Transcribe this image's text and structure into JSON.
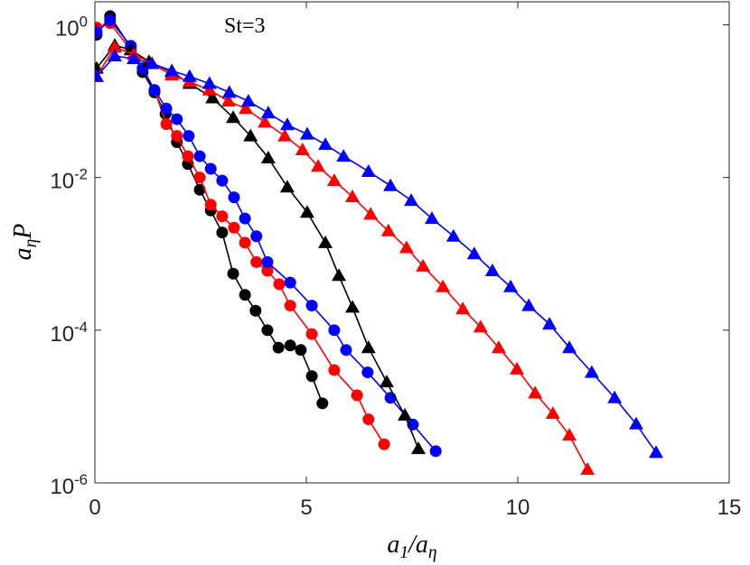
{
  "chart_data": {
    "type": "line",
    "log_y": true,
    "annotation": "St=3",
    "x_label": "a_1/a_η",
    "y_label": "a_ηP",
    "xlim": [
      0,
      15
    ],
    "xticks": [
      0,
      5,
      10,
      15
    ],
    "ylim": [
      1e-06,
      2
    ],
    "yticks": [
      {
        "value": 1,
        "label": "10^0"
      },
      {
        "value": 0.01,
        "label": "10^-2"
      },
      {
        "value": 0.0001,
        "label": "10^-4"
      },
      {
        "value": 1e-06,
        "label": "10^-6"
      }
    ],
    "series": [
      {
        "color": "#000000",
        "marker": "circle",
        "x": [
          0.04,
          0.36,
          0.85,
          1.13,
          1.41,
          1.67,
          1.94,
          2.2,
          2.48,
          2.74,
          3.01,
          3.27,
          3.55,
          3.8,
          4.08,
          4.34,
          4.62,
          4.87,
          5.13,
          5.38
        ],
        "values": [
          0.74,
          1.3,
          0.5,
          0.24,
          0.13,
          0.068,
          0.029,
          0.015,
          0.0069,
          0.0037,
          0.0019,
          0.00055,
          0.00029,
          0.00018,
          0.0001,
          5.9e-05,
          6.3e-05,
          5.5e-05,
          2.5e-05,
          1.1e-05
        ]
      },
      {
        "color": "#ff0000",
        "marker": "circle",
        "x": [
          0.04,
          0.36,
          0.85,
          1.13,
          1.41,
          1.69,
          1.94,
          2.2,
          2.48,
          2.74,
          3.01,
          3.29,
          3.55,
          3.82,
          4.08,
          4.36,
          4.62,
          5.13,
          5.66,
          6.2,
          6.47,
          6.84
        ],
        "values": [
          0.92,
          1.05,
          0.47,
          0.27,
          0.14,
          0.05,
          0.035,
          0.019,
          0.01,
          0.0044,
          0.0031,
          0.0022,
          0.0014,
          0.00078,
          0.0006,
          0.0004,
          0.00021,
          8.9e-05,
          3e-05,
          1.4e-05,
          6.8e-06,
          3.2e-06
        ]
      },
      {
        "color": "#0000ff",
        "marker": "circle",
        "x": [
          0.04,
          0.36,
          0.85,
          1.13,
          1.41,
          1.69,
          1.94,
          2.22,
          2.48,
          2.74,
          3.01,
          3.29,
          3.55,
          3.82,
          4.08,
          4.62,
          5.13,
          5.66,
          5.94,
          6.45,
          6.99,
          7.52,
          8.06
        ],
        "values": [
          0.8,
          1.15,
          0.53,
          0.27,
          0.14,
          0.08,
          0.058,
          0.035,
          0.019,
          0.013,
          0.0091,
          0.0055,
          0.0029,
          0.0017,
          0.00078,
          0.00042,
          0.00021,
          0.0001,
          5.5e-05,
          2.8e-05,
          1.3e-05,
          5.8e-06,
          2.6e-06
        ]
      },
      {
        "color": "#000000",
        "marker": "triangle",
        "x": [
          0.04,
          0.47,
          0.85,
          1.28,
          1.82,
          2.24,
          2.78,
          3.27,
          3.68,
          4.1,
          4.55,
          5.02,
          5.45,
          5.77,
          6.09,
          6.47,
          6.9,
          7.33,
          7.65
        ],
        "values": [
          0.27,
          0.54,
          0.47,
          0.33,
          0.24,
          0.17,
          0.11,
          0.061,
          0.035,
          0.018,
          0.0075,
          0.0035,
          0.0014,
          0.00052,
          0.0002,
          5.9e-05,
          2.1e-05,
          7.7e-06,
          2.8e-06
        ]
      },
      {
        "color": "#ff0000",
        "marker": "triangle",
        "x": [
          0.04,
          0.47,
          0.92,
          1.35,
          1.82,
          2.24,
          2.71,
          3.16,
          3.57,
          4.02,
          4.49,
          4.91,
          5.28,
          5.66,
          6.09,
          6.52,
          6.94,
          7.37,
          7.76,
          8.23,
          8.7,
          9.12,
          9.55,
          9.98,
          10.41,
          10.83,
          11.22,
          11.65
        ],
        "values": [
          0.21,
          0.51,
          0.41,
          0.31,
          0.22,
          0.18,
          0.14,
          0.1,
          0.08,
          0.053,
          0.035,
          0.023,
          0.014,
          0.0091,
          0.0056,
          0.0033,
          0.002,
          0.0012,
          0.00069,
          0.00037,
          0.00019,
          0.00011,
          5.9e-05,
          3.1e-05,
          1.5e-05,
          8.1e-06,
          4.2e-06,
          1.5e-06
        ]
      },
      {
        "color": "#0000ff",
        "marker": "triangle",
        "x": [
          0.04,
          0.47,
          0.92,
          1.35,
          1.82,
          2.24,
          2.71,
          3.18,
          3.63,
          4.1,
          4.55,
          5.02,
          5.45,
          5.88,
          6.47,
          6.99,
          7.48,
          7.97,
          8.48,
          8.97,
          9.4,
          9.83,
          10.26,
          10.75,
          11.22,
          11.75,
          12.29,
          12.8,
          13.27
        ],
        "values": [
          0.21,
          0.39,
          0.36,
          0.31,
          0.25,
          0.21,
          0.17,
          0.13,
          0.1,
          0.07,
          0.049,
          0.037,
          0.027,
          0.019,
          0.012,
          0.0078,
          0.005,
          0.0029,
          0.0017,
          0.001,
          0.0006,
          0.00037,
          0.00021,
          0.00012,
          5.9e-05,
          2.8e-05,
          1.3e-05,
          5.9e-06,
          2.5e-06
        ]
      }
    ]
  }
}
